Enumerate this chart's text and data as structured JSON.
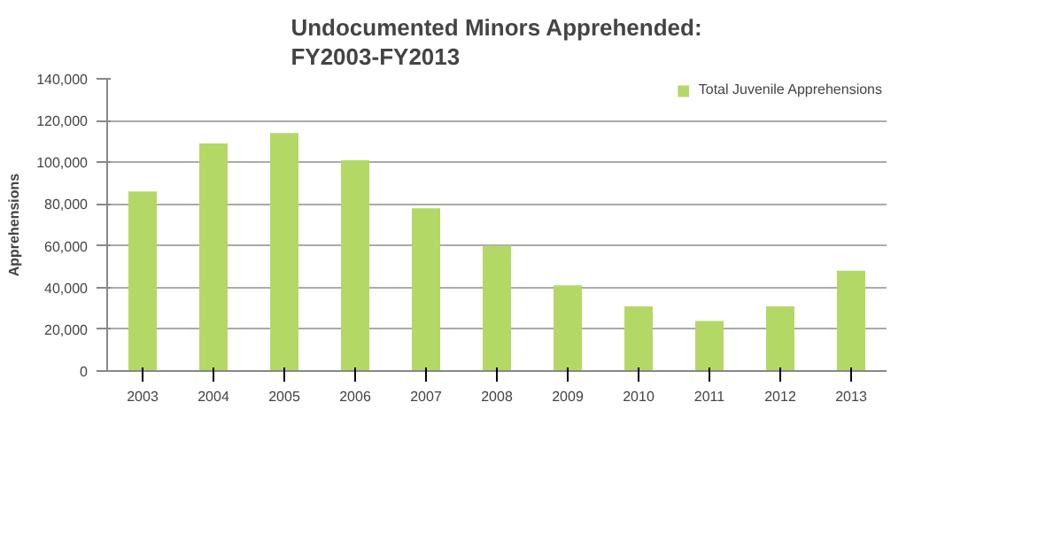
{
  "chart_data": {
    "type": "bar",
    "title": "Undocumented Minors Apprehended:\nFY2003-FY2013",
    "ylabel": "Apprehensions",
    "categories": [
      "2003",
      "2004",
      "2005",
      "2006",
      "2007",
      "2008",
      "2009",
      "2010",
      "2011",
      "2012",
      "2013"
    ],
    "series": [
      {
        "name": "Total Juvenile Apprehensions",
        "color": "#b4d866",
        "values": [
          86000,
          109000,
          114000,
          101000,
          78000,
          60000,
          41000,
          31000,
          24000,
          31000,
          48000
        ]
      }
    ],
    "ylim": [
      0,
      140000
    ],
    "yticks": [
      {
        "value": 0,
        "label": "0"
      },
      {
        "value": 20000,
        "label": "20,000"
      },
      {
        "value": 40000,
        "label": "40,000"
      },
      {
        "value": 60000,
        "label": "60,000"
      },
      {
        "value": 80000,
        "label": "80,000"
      },
      {
        "value": 100000,
        "label": "100,000"
      },
      {
        "value": 120000,
        "label": "120,000"
      },
      {
        "value": 140000,
        "label": "140,000"
      }
    ],
    "grid": "y",
    "legend": "top right"
  }
}
